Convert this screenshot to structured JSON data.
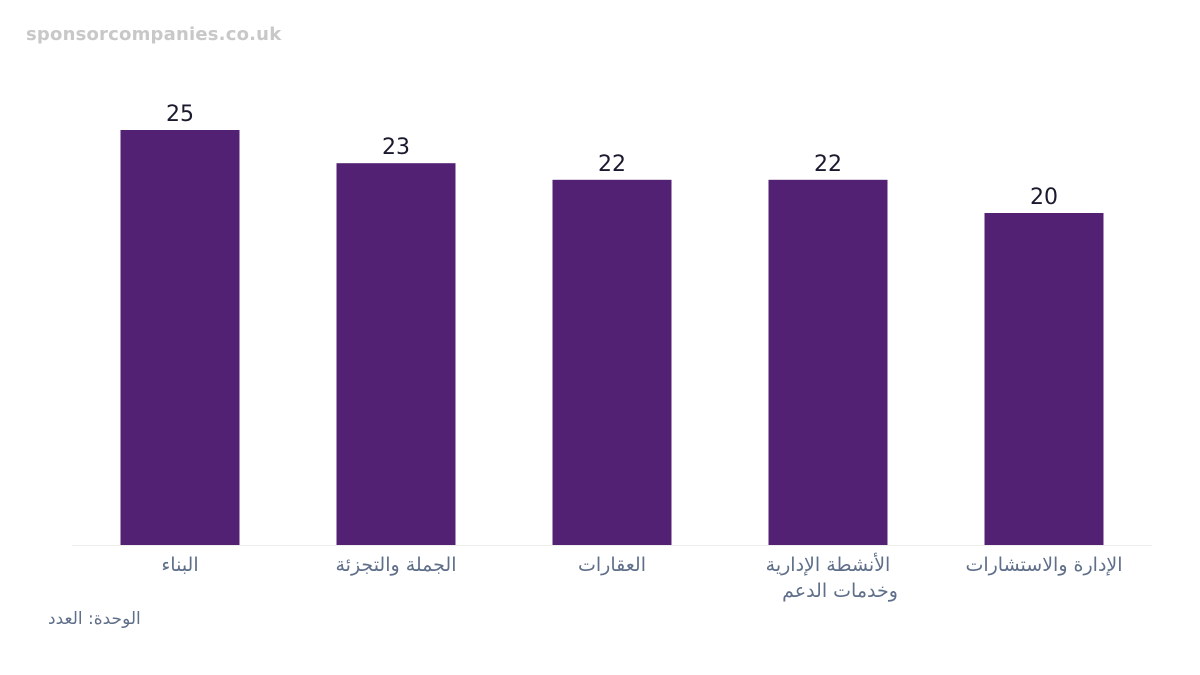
{
  "watermark": "sponsorcompanies.co.uk",
  "unit_note": "الوحدة: العدد",
  "colors": {
    "bar": "#522173",
    "value_label": "#1a1a2e",
    "category_label": "#5f6f8a",
    "baseline": "#eeeeee"
  },
  "chart_data": {
    "type": "bar",
    "categories": [
      [
        "البناء"
      ],
      [
        "الجملة والتجزئة"
      ],
      [
        "العقارات"
      ],
      [
        "الأنشطة الإدارية",
        "وخدمات الدعم"
      ],
      [
        "الإدارة والاستشارات"
      ]
    ],
    "values": [
      25,
      23,
      22,
      22,
      20
    ],
    "ylim": [
      0,
      25
    ],
    "grid": false,
    "legend": "none"
  }
}
